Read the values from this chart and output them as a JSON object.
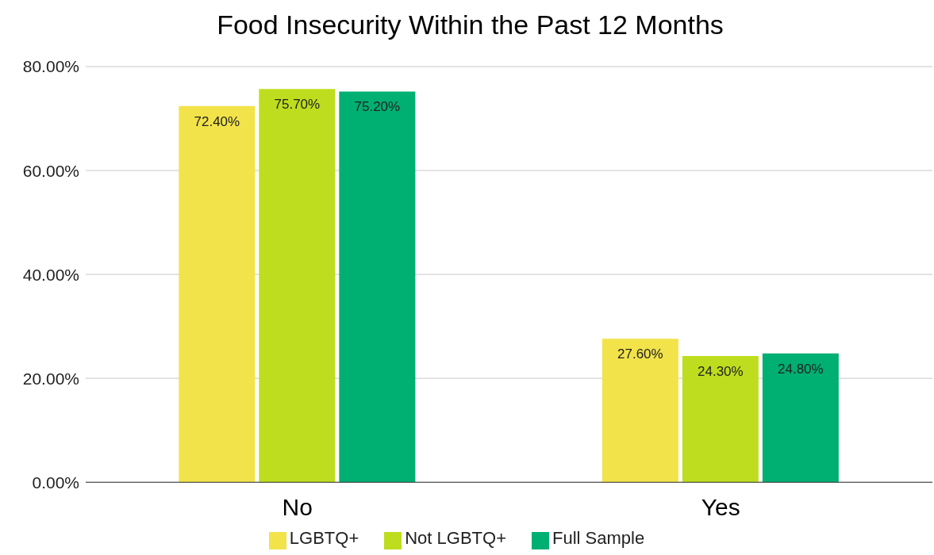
{
  "chart_data": {
    "type": "bar",
    "title": "Food Insecurity Within the Past 12 Months",
    "categories": [
      "No",
      "Yes"
    ],
    "series": [
      {
        "name": "LGBTQ+",
        "color": "#f2e34a",
        "values": [
          72.4,
          27.6
        ],
        "value_labels": [
          "72.40%",
          "27.60%"
        ]
      },
      {
        "name": "Not LGBTQ+",
        "color": "#bedd1e",
        "values": [
          75.7,
          24.3
        ],
        "value_labels": [
          "75.70%",
          "24.30%"
        ]
      },
      {
        "name": "Full Sample",
        "color": "#00af72",
        "values": [
          75.2,
          24.8
        ],
        "value_labels": [
          "75.20%",
          "24.80%"
        ]
      }
    ],
    "ylim": [
      0,
      80
    ],
    "yticks": [
      {
        "value": 0,
        "label": "0.00%"
      },
      {
        "value": 20,
        "label": "20.00%"
      },
      {
        "value": 40,
        "label": "40.00%"
      },
      {
        "value": 60,
        "label": "60.00%"
      },
      {
        "value": 80,
        "label": "80.00%"
      }
    ],
    "grid": "y",
    "legend": "bottom"
  }
}
